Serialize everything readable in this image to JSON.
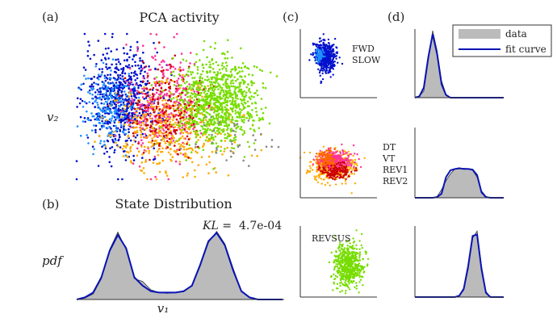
{
  "chart_data": [
    {
      "panel": "(a)",
      "type": "scatter",
      "title": "PCA activity",
      "ylabel": "v₂",
      "xlim": [
        -1,
        1
      ],
      "ylim": [
        -1,
        1
      ],
      "colors": [
        "#0011cc",
        "#1e90ff",
        "#ff3399",
        "#ffaa00",
        "#cc0000",
        "#77dd00",
        "#888888"
      ],
      "clusters": [
        {
          "cx": -0.55,
          "cy": 0.1,
          "sx": 0.18,
          "sy": 0.35,
          "n": 650,
          "color": 0
        },
        {
          "cx": -0.7,
          "cy": 0.0,
          "sx": 0.12,
          "sy": 0.25,
          "n": 200,
          "color": 1
        },
        {
          "cx": -0.15,
          "cy": 0.0,
          "sx": 0.18,
          "sy": 0.35,
          "n": 350,
          "color": 2
        },
        {
          "cx": -0.05,
          "cy": -0.3,
          "sx": 0.3,
          "sy": 0.3,
          "n": 450,
          "color": 3
        },
        {
          "cx": -0.1,
          "cy": -0.05,
          "sx": 0.18,
          "sy": 0.28,
          "n": 200,
          "color": 4
        },
        {
          "cx": 0.38,
          "cy": 0.05,
          "sx": 0.2,
          "sy": 0.3,
          "n": 900,
          "color": 5
        },
        {
          "cx": 0.55,
          "cy": -0.5,
          "sx": 0.2,
          "sy": 0.15,
          "n": 40,
          "color": 6
        }
      ]
    },
    {
      "panel": "(b)",
      "type": "area",
      "title": "State Distribution",
      "xlabel": "v₁",
      "ylabel": "pdf",
      "annotation": {
        "label": "KL =",
        "value": "4.7e-04"
      },
      "x": [
        0.0,
        0.04,
        0.08,
        0.12,
        0.16,
        0.2,
        0.24,
        0.28,
        0.32,
        0.36,
        0.4,
        0.44,
        0.48,
        0.52,
        0.56,
        0.6,
        0.64,
        0.68,
        0.72,
        0.76,
        0.8,
        0.84,
        0.88,
        0.92,
        0.96,
        1.0
      ],
      "data_pdf": [
        0.0,
        0.02,
        0.08,
        0.3,
        0.72,
        0.97,
        0.72,
        0.3,
        0.26,
        0.14,
        0.1,
        0.09,
        0.1,
        0.11,
        0.2,
        0.48,
        0.82,
        0.98,
        0.8,
        0.45,
        0.12,
        0.03,
        0.0,
        0.0,
        0.0,
        0.0
      ],
      "fit_pdf": [
        0.0,
        0.03,
        0.1,
        0.32,
        0.7,
        0.93,
        0.74,
        0.32,
        0.2,
        0.12,
        0.1,
        0.1,
        0.1,
        0.12,
        0.2,
        0.5,
        0.84,
        0.96,
        0.78,
        0.42,
        0.12,
        0.03,
        0.0,
        0.0,
        0.0,
        0.0
      ]
    },
    {
      "panel": "(c)",
      "type": "scatter",
      "subplots": [
        {
          "labels": [
            "FWD",
            "SLOW"
          ],
          "clusters": [
            {
              "cx": -0.35,
              "cy": 0.2,
              "sx": 0.13,
              "sy": 0.22,
              "n": 500,
              "color": "#0011cc"
            },
            {
              "cx": -0.5,
              "cy": 0.25,
              "sx": 0.06,
              "sy": 0.1,
              "n": 60,
              "color": "#1e90ff"
            }
          ]
        },
        {
          "labels": [
            "DT",
            "VT",
            "REV1",
            "REV2"
          ],
          "clusters": [
            {
              "cx": -0.15,
              "cy": -0.1,
              "sx": 0.28,
              "sy": 0.2,
              "n": 450,
              "color": "#ffaa00"
            },
            {
              "cx": -0.1,
              "cy": 0.05,
              "sx": 0.22,
              "sy": 0.15,
              "n": 300,
              "color": "#ff3399"
            },
            {
              "cx": -0.05,
              "cy": -0.25,
              "sx": 0.2,
              "sy": 0.12,
              "n": 150,
              "color": "#cc0000"
            },
            {
              "cx": -0.3,
              "cy": 0.1,
              "sx": 0.12,
              "sy": 0.12,
              "n": 100,
              "color": "#ff6600"
            }
          ]
        },
        {
          "labels": [
            "REVSUS"
          ],
          "clusters": [
            {
              "cx": 0.25,
              "cy": -0.1,
              "sx": 0.18,
              "sy": 0.3,
              "n": 550,
              "color": "#77dd00"
            }
          ]
        }
      ]
    },
    {
      "panel": "(d)",
      "type": "area",
      "legend": {
        "data": "data",
        "fit": "fit curve",
        "position": "top-right"
      },
      "subplots": [
        {
          "x": [
            0.0,
            0.05,
            0.1,
            0.15,
            0.2,
            0.25,
            0.3,
            0.35,
            0.4,
            0.45,
            0.5,
            0.55,
            0.6,
            0.65,
            0.7,
            0.75,
            0.8,
            0.85,
            0.9,
            0.95,
            1.0
          ],
          "data_pdf": [
            0.0,
            0.02,
            0.1,
            0.55,
            1.0,
            0.7,
            0.25,
            0.05,
            0.0,
            0.0,
            0.0,
            0.0,
            0.0,
            0.0,
            0.0,
            0.0,
            0.0,
            0.0,
            0.0,
            0.0,
            0.0
          ],
          "fit_pdf": [
            0.0,
            0.02,
            0.15,
            0.6,
            0.95,
            0.65,
            0.2,
            0.04,
            0.0,
            0.0,
            0.0,
            0.0,
            0.0,
            0.0,
            0.0,
            0.0,
            0.0,
            0.0,
            0.0,
            0.0,
            0.0
          ]
        },
        {
          "x": [
            0.0,
            0.05,
            0.1,
            0.15,
            0.2,
            0.25,
            0.3,
            0.35,
            0.4,
            0.45,
            0.5,
            0.55,
            0.6,
            0.65,
            0.7,
            0.75,
            0.8,
            0.85,
            0.9,
            0.95,
            1.0
          ],
          "data_pdf": [
            0.0,
            0.0,
            0.0,
            0.0,
            0.0,
            0.02,
            0.12,
            0.25,
            0.35,
            0.42,
            0.42,
            0.43,
            0.42,
            0.4,
            0.3,
            0.1,
            0.02,
            0.0,
            0.0,
            0.0,
            0.0
          ],
          "fit_pdf": [
            0.0,
            0.0,
            0.0,
            0.0,
            0.0,
            0.01,
            0.06,
            0.3,
            0.4,
            0.42,
            0.43,
            0.42,
            0.42,
            0.41,
            0.33,
            0.08,
            0.01,
            0.0,
            0.0,
            0.0,
            0.0
          ]
        },
        {
          "x": [
            0.0,
            0.05,
            0.1,
            0.15,
            0.2,
            0.25,
            0.3,
            0.35,
            0.4,
            0.45,
            0.5,
            0.55,
            0.6,
            0.65,
            0.7,
            0.75,
            0.8,
            0.85,
            0.9,
            0.95,
            1.0
          ],
          "data_pdf": [
            0.0,
            0.0,
            0.0,
            0.0,
            0.0,
            0.0,
            0.0,
            0.0,
            0.0,
            0.0,
            0.02,
            0.1,
            0.4,
            0.85,
            0.95,
            0.45,
            0.08,
            0.0,
            0.0,
            0.0,
            0.0
          ],
          "fit_pdf": [
            0.0,
            0.0,
            0.0,
            0.0,
            0.0,
            0.0,
            0.0,
            0.0,
            0.0,
            0.0,
            0.02,
            0.12,
            0.45,
            0.88,
            0.9,
            0.4,
            0.06,
            0.0,
            0.0,
            0.0,
            0.0
          ]
        }
      ]
    }
  ]
}
